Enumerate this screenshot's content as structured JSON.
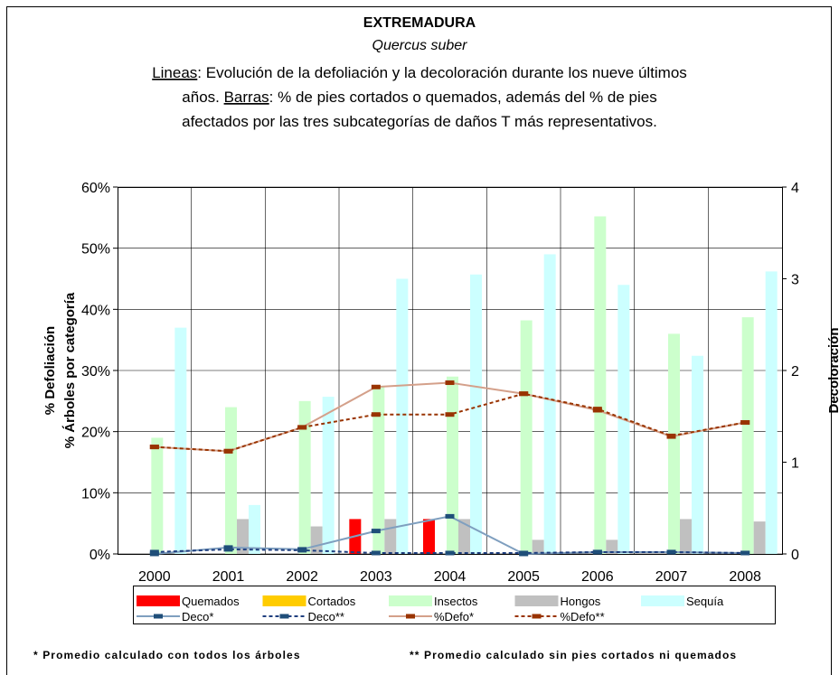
{
  "chart_data": {
    "type": "bar",
    "title": "EXTREMADURA",
    "species": "Quercus suber",
    "subtitle_lines": [
      [
        {
          "text": "Lineas",
          "underline": true
        },
        {
          "text": ": Evolución de la defoliación y la decoloración durante los nueve últimos"
        }
      ],
      [
        {
          "text": "años. "
        },
        {
          "text": "Barras",
          "underline": true
        },
        {
          "text": ": % de pies cortados o quemados, además del % de pies"
        }
      ],
      [
        {
          "text": "afectados por las tres subcategorías de daños T más representativos."
        }
      ]
    ],
    "ylabel": [
      "% Defoliación",
      "% Árboles por categoría"
    ],
    "y2label": "Decoloración",
    "footnotes": [
      "* Promedio calculado con todos los árboles",
      "** Promedio calculado sin pies cortados ni quemados"
    ],
    "categories": [
      "2000",
      "2001",
      "2002",
      "2003",
      "2004",
      "2005",
      "2006",
      "2007",
      "2008"
    ],
    "ylim": [
      0,
      60
    ],
    "yticks": [
      {
        "value": 0,
        "label": "0%"
      },
      {
        "value": 10,
        "label": "10%"
      },
      {
        "value": 20,
        "label": "20%"
      },
      {
        "value": 30,
        "label": "30%"
      },
      {
        "value": 40,
        "label": "40%"
      },
      {
        "value": 50,
        "label": "50%"
      },
      {
        "value": 60,
        "label": "60%"
      }
    ],
    "y2lim": [
      0,
      4
    ],
    "y2ticks": [
      0,
      1,
      2,
      3,
      4
    ],
    "grid": true,
    "series": [
      {
        "name": "Quemados",
        "type": "bar",
        "color": "#ff0000",
        "values": [
          0,
          0,
          0,
          5.7,
          5.7,
          0,
          0,
          0,
          0
        ]
      },
      {
        "name": "Cortados",
        "type": "bar",
        "color": "#ffcc00",
        "values": [
          0,
          0,
          0,
          0,
          0,
          0,
          0,
          0,
          0
        ]
      },
      {
        "name": "Insectos",
        "type": "bar",
        "color": "#ccffcc",
        "values": [
          19,
          24,
          25,
          27.5,
          29,
          38.2,
          55.2,
          36,
          38.7
        ]
      },
      {
        "name": "Hongos",
        "type": "bar",
        "color": "#c0c0c0",
        "values": [
          0,
          5.7,
          4.5,
          5.7,
          5.7,
          2.3,
          2.3,
          5.7,
          5.3
        ]
      },
      {
        "name": "Sequía",
        "type": "bar",
        "color": "#ccffff",
        "values": [
          37,
          8,
          25.7,
          45,
          45.7,
          49,
          44,
          32.4,
          46.2
        ]
      },
      {
        "name": "Deco*",
        "type": "line",
        "axis": "y2",
        "color": "#7f9fbf",
        "marker_color": "#1f4e79",
        "dash": false,
        "values": [
          0,
          0.07,
          0.05,
          0.25,
          0.41,
          0,
          0.02,
          0.02,
          0.01
        ]
      },
      {
        "name": "Deco**",
        "type": "line",
        "axis": "y2",
        "color": "#1f3f7f",
        "marker_color": "#1f4e79",
        "dash": true,
        "values": [
          0.02,
          0.05,
          0.04,
          0.01,
          0.01,
          0.01,
          0.02,
          0.02,
          0.01
        ]
      },
      {
        "name": "%Defo*",
        "type": "line",
        "color": "#d4a08a",
        "marker_color": "#993300",
        "dash": false,
        "values": [
          17.5,
          16.8,
          20.7,
          27.3,
          28,
          26.2,
          23.5,
          19.2,
          21.5
        ]
      },
      {
        "name": "%Defo**",
        "type": "line",
        "color": "#993300",
        "marker_color": "#993300",
        "dash": true,
        "values": [
          17.5,
          16.8,
          20.7,
          22.8,
          22.8,
          26.2,
          23.7,
          19.3,
          21.5
        ]
      }
    ]
  }
}
